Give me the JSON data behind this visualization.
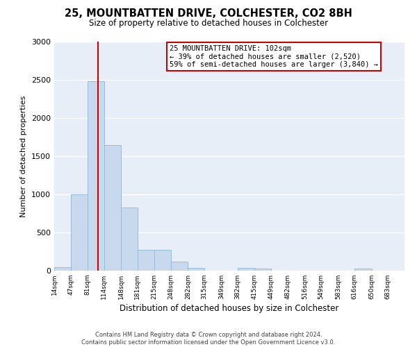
{
  "title": "25, MOUNTBATTEN DRIVE, COLCHESTER, CO2 8BH",
  "subtitle": "Size of property relative to detached houses in Colchester",
  "xlabel": "Distribution of detached houses by size in Colchester",
  "ylabel": "Number of detached properties",
  "bin_labels": [
    "14sqm",
    "47sqm",
    "81sqm",
    "114sqm",
    "148sqm",
    "181sqm",
    "215sqm",
    "248sqm",
    "282sqm",
    "315sqm",
    "349sqm",
    "382sqm",
    "415sqm",
    "449sqm",
    "482sqm",
    "516sqm",
    "549sqm",
    "583sqm",
    "616sqm",
    "650sqm",
    "683sqm"
  ],
  "bar_values": [
    50,
    1000,
    2480,
    1650,
    830,
    270,
    270,
    120,
    40,
    0,
    0,
    40,
    25,
    0,
    0,
    0,
    0,
    0,
    25,
    0,
    0
  ],
  "bar_color": "#c8d9ed",
  "bar_edge_color": "#9bbcd8",
  "vline_color": "#cc0000",
  "property_sqm": 102,
  "annotation_line1": "25 MOUNTBATTEN DRIVE: 102sqm",
  "annotation_line2": "← 39% of detached houses are smaller (2,520)",
  "annotation_line3": "59% of semi-detached houses are larger (3,840) →",
  "annotation_box_color": "#cc0000",
  "ylim": [
    0,
    3000
  ],
  "yticks": [
    0,
    500,
    1000,
    1500,
    2000,
    2500,
    3000
  ],
  "footer_line1": "Contains HM Land Registry data © Crown copyright and database right 2024.",
  "footer_line2": "Contains public sector information licensed under the Open Government Licence v3.0.",
  "bg_color": "#e8eef7",
  "fig_bg_color": "#ffffff",
  "grid_color": "#ffffff",
  "bin_edges": [
    14,
    47,
    81,
    114,
    148,
    181,
    215,
    248,
    282,
    315,
    349,
    382,
    415,
    449,
    482,
    516,
    549,
    583,
    616,
    650,
    683,
    716
  ]
}
